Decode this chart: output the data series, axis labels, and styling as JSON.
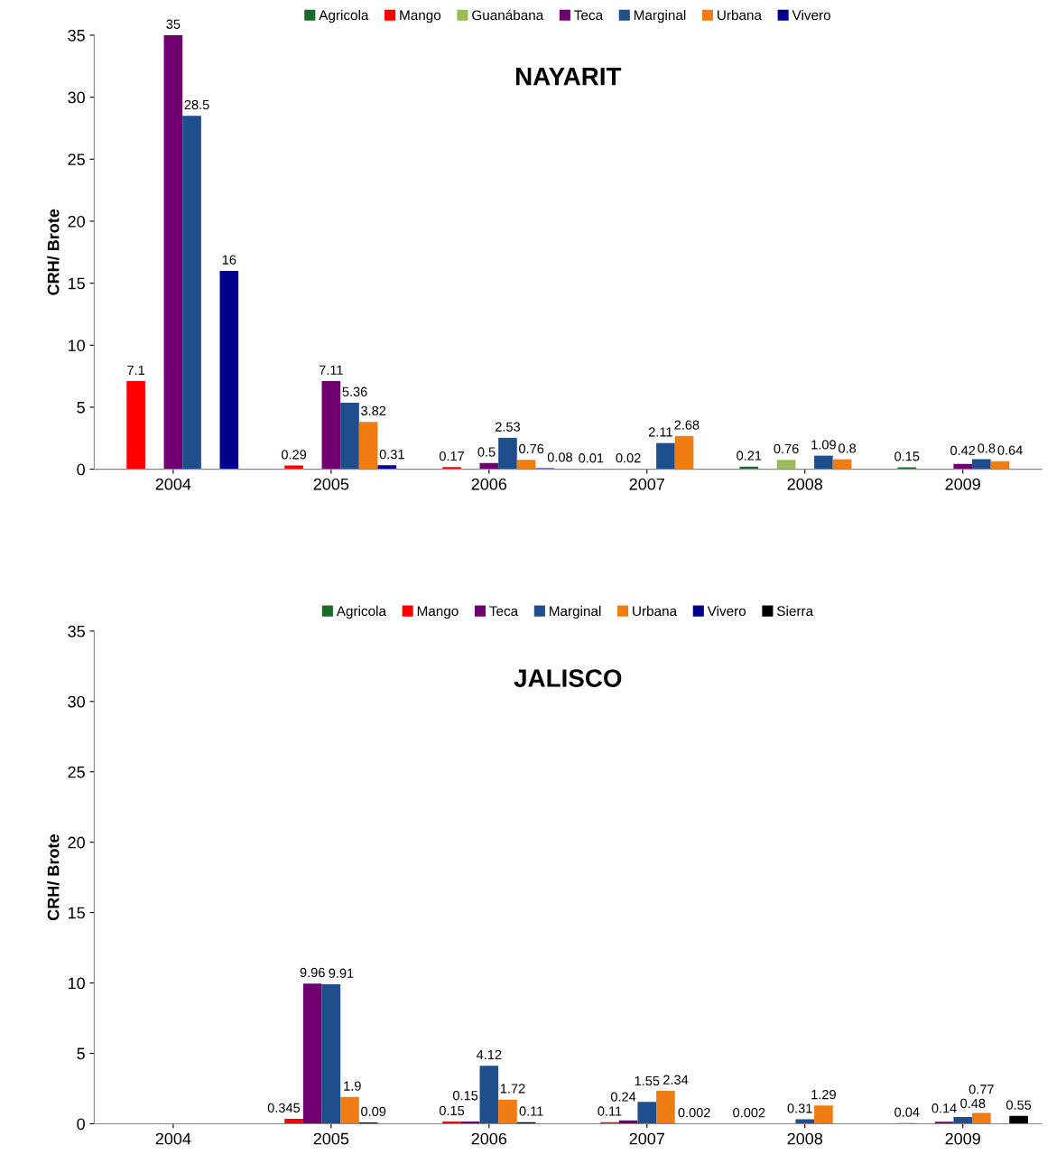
{
  "chart_data": [
    {
      "type": "bar",
      "title": "NAYARIT",
      "ylabel": "CRH/ Brote",
      "categories": [
        "2004",
        "2005",
        "2006",
        "2007",
        "2008",
        "2009"
      ],
      "ylim": [
        0,
        35
      ],
      "yticks": [
        0,
        5,
        10,
        15,
        20,
        25,
        30,
        35
      ],
      "legend": "top",
      "grid": false,
      "data_labels": true,
      "series": [
        {
          "name": "Agricola",
          "color": "#1a6b2a",
          "values": [
            null,
            null,
            null,
            0.01,
            0.21,
            0.15
          ]
        },
        {
          "name": "Mango",
          "color": "#ff0000",
          "values": [
            7.1,
            0.29,
            0.17,
            null,
            null,
            null
          ]
        },
        {
          "name": "Guanábana",
          "color": "#9bbb59",
          "values": [
            null,
            null,
            null,
            0.02,
            0.76,
            null
          ]
        },
        {
          "name": "Teca",
          "color": "#70006f",
          "values": [
            35,
            7.11,
            0.5,
            null,
            null,
            0.42
          ]
        },
        {
          "name": "Marginal",
          "color": "#1f4e8c",
          "values": [
            28.5,
            5.36,
            2.53,
            2.11,
            1.09,
            0.8
          ]
        },
        {
          "name": "Urbana",
          "color": "#f07c14",
          "values": [
            null,
            3.82,
            0.76,
            2.68,
            0.8,
            0.64
          ]
        },
        {
          "name": "Vivero",
          "color": "#00008b",
          "values": [
            16,
            0.31,
            0.08,
            null,
            null,
            null
          ]
        }
      ]
    },
    {
      "type": "bar",
      "title": "JALISCO",
      "ylabel": "CRH/ Brote",
      "categories": [
        "2004",
        "2005",
        "2006",
        "2007",
        "2008",
        "2009"
      ],
      "ylim": [
        0,
        35
      ],
      "yticks": [
        0,
        5,
        10,
        15,
        20,
        25,
        30,
        35
      ],
      "legend": "top",
      "grid": false,
      "data_labels": true,
      "series": [
        {
          "name": "Agricola",
          "color": "#1a6b2a",
          "values": [
            null,
            null,
            null,
            null,
            0.002,
            0.04
          ]
        },
        {
          "name": "Mango",
          "color": "#ff0000",
          "values": [
            null,
            0.345,
            0.15,
            0.11,
            null,
            null
          ]
        },
        {
          "name": "Teca",
          "color": "#70006f",
          "values": [
            null,
            9.96,
            0.15,
            0.24,
            null,
            0.14
          ]
        },
        {
          "name": "Marginal",
          "color": "#1f4e8c",
          "values": [
            null,
            9.91,
            4.12,
            1.55,
            0.31,
            0.48
          ]
        },
        {
          "name": "Urbana",
          "color": "#f07c14",
          "values": [
            null,
            1.9,
            1.72,
            2.34,
            1.29,
            0.77
          ]
        },
        {
          "name": "Vivero",
          "color": "#00008b",
          "values": [
            null,
            0.09,
            0.11,
            0.002,
            null,
            null
          ]
        },
        {
          "name": "Sierra",
          "color": "#000000",
          "values": [
            null,
            null,
            null,
            null,
            null,
            0.55
          ]
        }
      ]
    }
  ]
}
